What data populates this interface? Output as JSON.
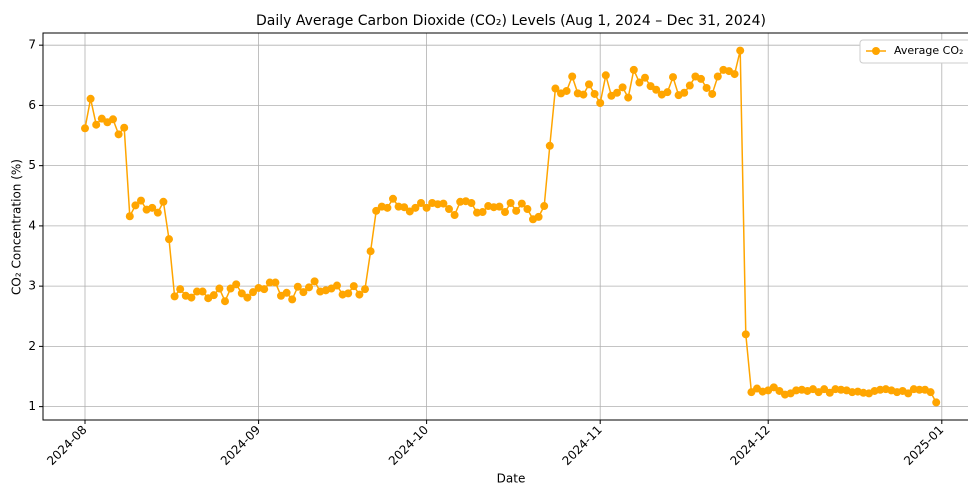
{
  "chart_data": {
    "type": "line",
    "title": "Daily Average Carbon Dioxide (CO₂) Levels (Aug 1, 2024 – Dec 31, 2024)",
    "xlabel": "Date",
    "ylabel": "CO₂ Concentration (%)",
    "x": [
      "2024-08-01",
      "2024-08-02",
      "2024-08-03",
      "2024-08-04",
      "2024-08-05",
      "2024-08-06",
      "2024-08-07",
      "2024-08-08",
      "2024-08-09",
      "2024-08-10",
      "2024-08-11",
      "2024-08-12",
      "2024-08-13",
      "2024-08-14",
      "2024-08-15",
      "2024-08-16",
      "2024-08-17",
      "2024-08-18",
      "2024-08-19",
      "2024-08-20",
      "2024-08-21",
      "2024-08-22",
      "2024-08-23",
      "2024-08-24",
      "2024-08-25",
      "2024-08-26",
      "2024-08-27",
      "2024-08-28",
      "2024-08-29",
      "2024-08-30",
      "2024-08-31",
      "2024-09-01",
      "2024-09-02",
      "2024-09-03",
      "2024-09-04",
      "2024-09-05",
      "2024-09-06",
      "2024-09-07",
      "2024-09-08",
      "2024-09-09",
      "2024-09-10",
      "2024-09-11",
      "2024-09-12",
      "2024-09-13",
      "2024-09-14",
      "2024-09-15",
      "2024-09-16",
      "2024-09-17",
      "2024-09-18",
      "2024-09-19",
      "2024-09-20",
      "2024-09-21",
      "2024-09-22",
      "2024-09-23",
      "2024-09-24",
      "2024-09-25",
      "2024-09-26",
      "2024-09-27",
      "2024-09-28",
      "2024-09-29",
      "2024-09-30",
      "2024-10-01",
      "2024-10-02",
      "2024-10-03",
      "2024-10-04",
      "2024-10-05",
      "2024-10-06",
      "2024-10-07",
      "2024-10-08",
      "2024-10-09",
      "2024-10-10",
      "2024-10-11",
      "2024-10-12",
      "2024-10-13",
      "2024-10-14",
      "2024-10-15",
      "2024-10-16",
      "2024-10-17",
      "2024-10-18",
      "2024-10-19",
      "2024-10-20",
      "2024-10-21",
      "2024-10-22",
      "2024-10-23",
      "2024-10-24",
      "2024-10-25",
      "2024-10-26",
      "2024-10-27",
      "2024-10-28",
      "2024-10-29",
      "2024-10-30",
      "2024-10-31",
      "2024-11-01",
      "2024-11-02",
      "2024-11-03",
      "2024-11-04",
      "2024-11-05",
      "2024-11-06",
      "2024-11-07",
      "2024-11-08",
      "2024-11-09",
      "2024-11-10",
      "2024-11-11",
      "2024-11-12",
      "2024-11-13",
      "2024-11-14",
      "2024-11-15",
      "2024-11-16",
      "2024-11-17",
      "2024-11-18",
      "2024-11-19",
      "2024-11-20",
      "2024-11-21",
      "2024-11-22",
      "2024-11-23",
      "2024-11-24",
      "2024-11-25",
      "2024-11-26",
      "2024-11-27",
      "2024-11-28",
      "2024-11-29",
      "2024-11-30",
      "2024-12-01",
      "2024-12-02",
      "2024-12-03",
      "2024-12-04",
      "2024-12-05",
      "2024-12-06",
      "2024-12-07",
      "2024-12-08",
      "2024-12-09",
      "2024-12-10",
      "2024-12-11",
      "2024-12-12",
      "2024-12-13",
      "2024-12-14",
      "2024-12-15",
      "2024-12-16",
      "2024-12-17",
      "2024-12-18",
      "2024-12-19",
      "2024-12-20",
      "2024-12-21",
      "2024-12-22",
      "2024-12-23",
      "2024-12-24",
      "2024-12-25",
      "2024-12-26",
      "2024-12-27",
      "2024-12-28",
      "2024-12-29",
      "2024-12-30",
      "2024-12-31"
    ],
    "series": [
      {
        "name": "Average CO₂",
        "color": "#ffa500",
        "values": [
          5.62,
          6.11,
          5.68,
          5.78,
          5.72,
          5.77,
          5.52,
          5.63,
          4.16,
          4.34,
          4.42,
          4.27,
          4.3,
          4.22,
          4.4,
          3.78,
          2.83,
          2.95,
          2.84,
          2.81,
          2.91,
          2.91,
          2.8,
          2.85,
          2.96,
          2.75,
          2.96,
          3.03,
          2.88,
          2.81,
          2.9,
          2.97,
          2.95,
          3.06,
          3.06,
          2.84,
          2.89,
          2.78,
          2.99,
          2.9,
          2.98,
          3.08,
          2.91,
          2.93,
          2.96,
          3.01,
          2.86,
          2.88,
          3.0,
          2.86,
          2.95,
          3.58,
          4.25,
          4.32,
          4.3,
          4.45,
          4.32,
          4.31,
          4.24,
          4.3,
          4.38,
          4.3,
          4.38,
          4.36,
          4.37,
          4.28,
          4.18,
          4.4,
          4.41,
          4.38,
          4.22,
          4.23,
          4.33,
          4.31,
          4.32,
          4.23,
          4.38,
          4.25,
          4.37,
          4.28,
          4.11,
          4.15,
          4.33,
          5.33,
          6.28,
          6.2,
          6.24,
          6.48,
          6.2,
          6.18,
          6.35,
          6.19,
          6.04,
          6.5,
          6.16,
          6.21,
          6.3,
          6.13,
          6.59,
          6.38,
          6.46,
          6.32,
          6.26,
          6.18,
          6.22,
          6.47,
          6.17,
          6.21,
          6.33,
          6.48,
          6.44,
          6.29,
          6.19,
          6.48,
          6.59,
          6.57,
          6.52,
          6.91,
          2.2,
          1.24,
          1.3,
          1.25,
          1.27,
          1.32,
          1.26,
          1.2,
          1.22,
          1.27,
          1.28,
          1.26,
          1.29,
          1.24,
          1.29,
          1.23,
          1.29,
          1.28,
          1.27,
          1.24,
          1.25,
          1.23,
          1.22,
          1.26,
          1.28,
          1.29,
          1.27,
          1.24,
          1.26,
          1.22,
          1.29,
          1.28,
          1.28,
          1.24,
          1.07
        ]
      }
    ],
    "xlim": [
      "2024-07-24T12:00",
      "2025-01-07T12:00"
    ],
    "xticks": [
      {
        "value": "2024-08-01",
        "label": "2024-08"
      },
      {
        "value": "2024-09-01",
        "label": "2024-09"
      },
      {
        "value": "2024-10-01",
        "label": "2024-10"
      },
      {
        "value": "2024-11-01",
        "label": "2024-11"
      },
      {
        "value": "2024-12-01",
        "label": "2024-12"
      },
      {
        "value": "2025-01-01",
        "label": "2025-01"
      }
    ],
    "ylim": [
      0.778,
      7.202
    ],
    "yticks": [
      1,
      2,
      3,
      4,
      5,
      6,
      7
    ],
    "grid": true,
    "legend": "upper right"
  }
}
